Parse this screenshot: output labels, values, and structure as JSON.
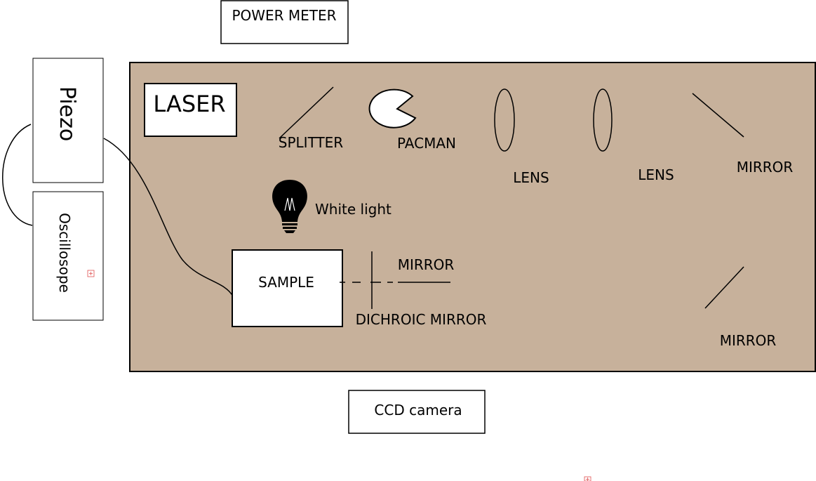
{
  "labels": {
    "power_meter": "POWER METER",
    "laser": "LASER",
    "piezo": "Piezo",
    "oscilloscope": "Oscillosope",
    "splitter": "SPLITTER",
    "pacman": "PACMAN",
    "lens_1": "LENS",
    "lens_2": "LENS",
    "mirror_1": "MIRROR",
    "mirror_2": "MIRROR",
    "mirror_3": "MIRROR",
    "white_light": "White light",
    "sample": "SAMPLE",
    "dichroic_mirror": "DICHROIC MIRROR",
    "ccd_camera": "CCD camera"
  },
  "colors": {
    "table": "#c7b19b",
    "line": "#000000",
    "marker": "#e05050"
  },
  "icons": [
    "lightbulb-icon"
  ]
}
